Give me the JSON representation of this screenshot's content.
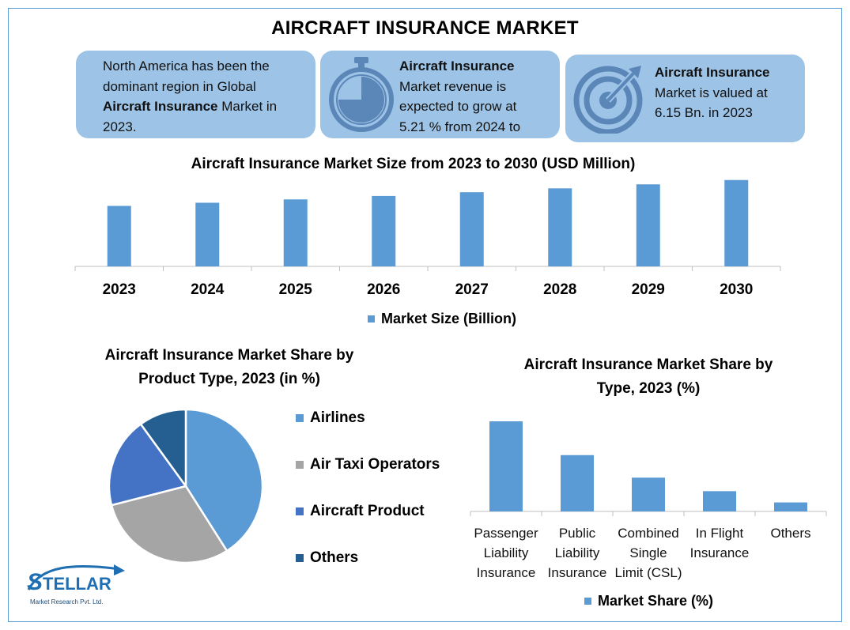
{
  "page": {
    "title": "AIRCRAFT INSURANCE MARKET"
  },
  "cards": {
    "card1": {
      "line1": "North America has been the",
      "line2": "dominant region in Global",
      "line3_bold": "Aircraft Insurance",
      "line3_rest": " Market in",
      "line4": "2023."
    },
    "card2": {
      "bold": "Aircraft Insurance",
      "line2": "Market revenue is",
      "line3": "expected to grow at",
      "line4": "5.21 % from 2024 to"
    },
    "card3": {
      "bold": "Aircraft Insurance",
      "line2": "Market is valued at",
      "line3": "6.15 Bn. in 2023"
    }
  },
  "icons": {
    "card2": "stopwatch-icon",
    "card3": "target-icon",
    "logo": "stellar-logo"
  },
  "colors": {
    "bar": "#5b9bd5",
    "card": "#9dc3e6",
    "icon": "#5b86b8",
    "border": "#5b9bd5",
    "airlines": "#5b9bd5",
    "air_taxi": "#a5a5a5",
    "aircraft_product": "#4472c4",
    "others": "#255e91"
  },
  "logo": {
    "name": "STELLAR",
    "tagline": "Market Research Pvt. Ltd."
  },
  "chart_data": [
    {
      "type": "bar",
      "title": "Aircraft Insurance Market Size from 2023 to 2030 (USD Million)",
      "categories": [
        "2023",
        "2024",
        "2025",
        "2026",
        "2027",
        "2028",
        "2029",
        "2030"
      ],
      "series": [
        {
          "name": "Market Size (Billion)",
          "values": [
            6.15,
            6.47,
            6.81,
            7.16,
            7.54,
            7.93,
            8.34,
            8.78
          ]
        }
      ],
      "ylim": [
        0,
        9
      ],
      "grid": false,
      "legend": "bottom"
    },
    {
      "type": "pie",
      "title_line1": "Aircraft Insurance Market Share by",
      "title_line2": "Product Type, 2023 (in %)",
      "labels": [
        "Airlines",
        "Air Taxi Operators",
        "Aircraft Product",
        "Others"
      ],
      "values": [
        41,
        30,
        19,
        10
      ],
      "start": "top",
      "direction": "clockwise",
      "legend": "right"
    },
    {
      "type": "bar",
      "title_line1": "Aircraft Insurance Market Share by",
      "title_line2": "Type, 2023 (%)",
      "categories": [
        [
          "Passenger",
          "Liability",
          "Insurance"
        ],
        [
          "Public",
          "Liability",
          "Insurance"
        ],
        [
          "Combined",
          "Single",
          "Limit (CSL)"
        ],
        [
          "In Flight",
          "Insurance"
        ],
        [
          "Others"
        ]
      ],
      "series": [
        {
          "name": "Market Share (%)",
          "values": [
            40,
            25,
            15,
            9,
            4
          ]
        }
      ],
      "ylim": [
        0,
        40
      ],
      "grid": false,
      "legend": "bottom"
    }
  ]
}
